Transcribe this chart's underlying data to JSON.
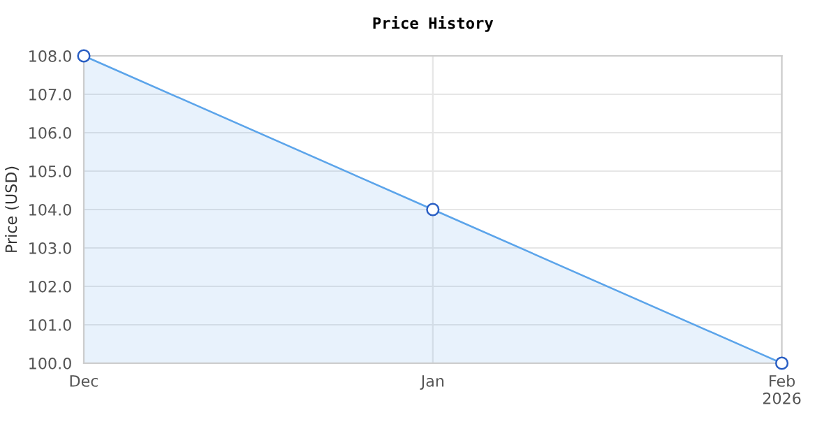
{
  "chart_data": {
    "type": "area",
    "title": "Price History",
    "ylabel": "Price (USD)",
    "x": [
      "2025-12",
      "2026-01",
      "2026-02"
    ],
    "series": [
      {
        "color": "#5ba4ea",
        "values": [
          108.0,
          104.0,
          100.0
        ]
      }
    ],
    "xlim": [
      "2025-12",
      "2026-02"
    ],
    "xticks": [
      {
        "value": "2025-12",
        "label": "Dec"
      },
      {
        "value": "2026-01",
        "label": "Jan"
      },
      {
        "value": "2026-02",
        "label": "Feb\n2026"
      }
    ],
    "ylim": [
      100,
      108
    ],
    "yticks": [
      {
        "value": 100,
        "label": "100.0"
      },
      {
        "value": 101,
        "label": "101.0"
      },
      {
        "value": 102,
        "label": "102.0"
      },
      {
        "value": 103,
        "label": "103.0"
      },
      {
        "value": 104,
        "label": "104.0"
      },
      {
        "value": 105,
        "label": "105.0"
      },
      {
        "value": 106,
        "label": "106.0"
      },
      {
        "value": 107,
        "label": "107.0"
      },
      {
        "value": 108,
        "label": "108.0"
      }
    ],
    "grid": true,
    "marker": "circle",
    "line_style": "solid"
  }
}
